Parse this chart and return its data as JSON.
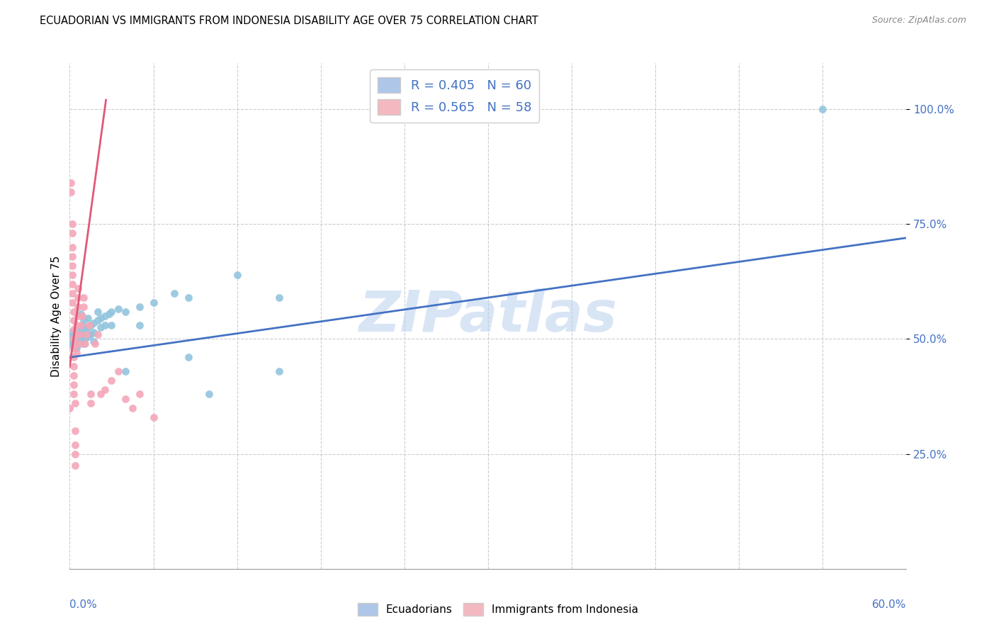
{
  "title": "ECUADORIAN VS IMMIGRANTS FROM INDONESIA DISABILITY AGE OVER 75 CORRELATION CHART",
  "source": "Source: ZipAtlas.com",
  "ylabel": "Disability Age Over 75",
  "xmin": 0.0,
  "xmax": 0.6,
  "ymin": 0.0,
  "ymax": 1.1,
  "yticks": [
    0.25,
    0.5,
    0.75,
    1.0
  ],
  "ytick_labels": [
    "25.0%",
    "50.0%",
    "75.0%",
    "100.0%"
  ],
  "blue_color": "#92c5de",
  "pink_color": "#f4a7b9",
  "trend_blue": "#4472c4",
  "trend_pink": "#e05878",
  "watermark": "ZIPatlas",
  "blue_trend_x0": 0.0,
  "blue_trend_y0": 0.46,
  "blue_trend_x1": 0.6,
  "blue_trend_y1": 0.72,
  "pink_trend_x0": 0.0,
  "pink_trend_y0": 0.44,
  "pink_trend_x1": 0.026,
  "pink_trend_y1": 1.02,
  "blue_points": [
    [
      0.002,
      0.505
    ],
    [
      0.002,
      0.495
    ],
    [
      0.002,
      0.515
    ],
    [
      0.002,
      0.485
    ],
    [
      0.003,
      0.5
    ],
    [
      0.003,
      0.51
    ],
    [
      0.003,
      0.49
    ],
    [
      0.004,
      0.505
    ],
    [
      0.004,
      0.495
    ],
    [
      0.005,
      0.51
    ],
    [
      0.005,
      0.5
    ],
    [
      0.005,
      0.49
    ],
    [
      0.005,
      0.48
    ],
    [
      0.006,
      0.505
    ],
    [
      0.006,
      0.495
    ],
    [
      0.006,
      0.515
    ],
    [
      0.007,
      0.51
    ],
    [
      0.007,
      0.5
    ],
    [
      0.007,
      0.49
    ],
    [
      0.008,
      0.505
    ],
    [
      0.008,
      0.525
    ],
    [
      0.008,
      0.555
    ],
    [
      0.009,
      0.5
    ],
    [
      0.009,
      0.53
    ],
    [
      0.01,
      0.51
    ],
    [
      0.01,
      0.54
    ],
    [
      0.01,
      0.49
    ],
    [
      0.011,
      0.52
    ],
    [
      0.011,
      0.5
    ],
    [
      0.013,
      0.525
    ],
    [
      0.013,
      0.505
    ],
    [
      0.013,
      0.545
    ],
    [
      0.015,
      0.53
    ],
    [
      0.015,
      0.51
    ],
    [
      0.017,
      0.535
    ],
    [
      0.017,
      0.515
    ],
    [
      0.017,
      0.495
    ],
    [
      0.02,
      0.54
    ],
    [
      0.02,
      0.56
    ],
    [
      0.022,
      0.545
    ],
    [
      0.022,
      0.525
    ],
    [
      0.025,
      0.55
    ],
    [
      0.025,
      0.53
    ],
    [
      0.028,
      0.555
    ],
    [
      0.03,
      0.56
    ],
    [
      0.03,
      0.53
    ],
    [
      0.035,
      0.565
    ],
    [
      0.04,
      0.56
    ],
    [
      0.04,
      0.43
    ],
    [
      0.05,
      0.57
    ],
    [
      0.05,
      0.53
    ],
    [
      0.06,
      0.58
    ],
    [
      0.075,
      0.6
    ],
    [
      0.085,
      0.59
    ],
    [
      0.085,
      0.46
    ],
    [
      0.1,
      0.38
    ],
    [
      0.12,
      0.64
    ],
    [
      0.15,
      0.59
    ],
    [
      0.15,
      0.43
    ],
    [
      0.54,
      1.0
    ]
  ],
  "pink_points": [
    [
      0.001,
      0.82
    ],
    [
      0.001,
      0.84
    ],
    [
      0.002,
      0.73
    ],
    [
      0.002,
      0.75
    ],
    [
      0.002,
      0.68
    ],
    [
      0.002,
      0.7
    ],
    [
      0.002,
      0.64
    ],
    [
      0.002,
      0.66
    ],
    [
      0.002,
      0.62
    ],
    [
      0.002,
      0.6
    ],
    [
      0.002,
      0.58
    ],
    [
      0.003,
      0.56
    ],
    [
      0.003,
      0.54
    ],
    [
      0.003,
      0.52
    ],
    [
      0.003,
      0.5
    ],
    [
      0.003,
      0.48
    ],
    [
      0.003,
      0.46
    ],
    [
      0.003,
      0.44
    ],
    [
      0.003,
      0.42
    ],
    [
      0.003,
      0.4
    ],
    [
      0.003,
      0.38
    ],
    [
      0.004,
      0.36
    ],
    [
      0.004,
      0.3
    ],
    [
      0.004,
      0.27
    ],
    [
      0.004,
      0.25
    ],
    [
      0.004,
      0.225
    ],
    [
      0.005,
      0.47
    ],
    [
      0.005,
      0.49
    ],
    [
      0.005,
      0.51
    ],
    [
      0.005,
      0.53
    ],
    [
      0.006,
      0.55
    ],
    [
      0.006,
      0.57
    ],
    [
      0.006,
      0.59
    ],
    [
      0.006,
      0.61
    ],
    [
      0.007,
      0.49
    ],
    [
      0.007,
      0.51
    ],
    [
      0.008,
      0.53
    ],
    [
      0.009,
      0.55
    ],
    [
      0.01,
      0.57
    ],
    [
      0.01,
      0.59
    ],
    [
      0.011,
      0.49
    ],
    [
      0.012,
      0.51
    ],
    [
      0.014,
      0.53
    ],
    [
      0.015,
      0.38
    ],
    [
      0.015,
      0.36
    ],
    [
      0.018,
      0.49
    ],
    [
      0.02,
      0.51
    ],
    [
      0.022,
      0.38
    ],
    [
      0.025,
      0.39
    ],
    [
      0.03,
      0.41
    ],
    [
      0.035,
      0.43
    ],
    [
      0.04,
      0.37
    ],
    [
      0.045,
      0.35
    ],
    [
      0.05,
      0.38
    ],
    [
      0.06,
      0.33
    ],
    [
      0.0,
      0.35
    ]
  ]
}
